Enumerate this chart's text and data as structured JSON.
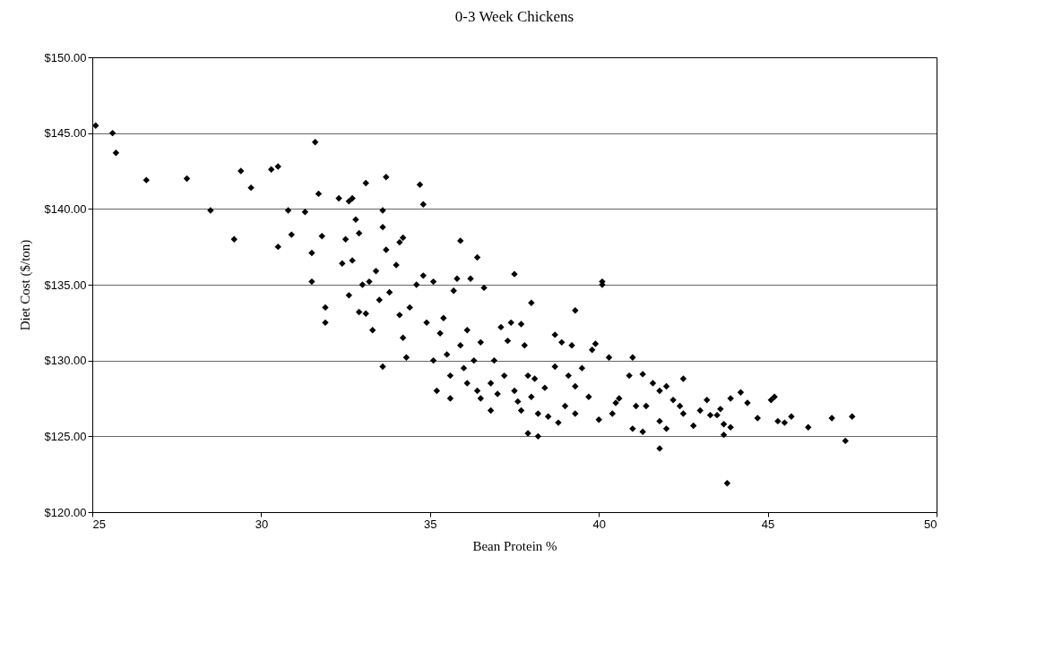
{
  "chart_data": {
    "type": "scatter",
    "title": "0-3 Week  Chickens",
    "xlabel": "Bean Protein %",
    "ylabel": "Diet Cost ($/ton)",
    "x": [
      25.1,
      25.6,
      25.7,
      26.6,
      27.8,
      28.5,
      29.2,
      29.4,
      29.7,
      30.3,
      30.5,
      30.5,
      30.8,
      30.9,
      31.3,
      31.5,
      31.6,
      31.5,
      31.7,
      31.8,
      31.9,
      31.9,
      32.3,
      32.4,
      32.5,
      32.6,
      32.7,
      32.6,
      32.7,
      32.8,
      32.9,
      32.9,
      33.0,
      33.1,
      33.1,
      33.2,
      33.3,
      33.4,
      33.5,
      33.6,
      33.6,
      33.7,
      33.6,
      33.7,
      33.8,
      34.0,
      34.1,
      34.2,
      34.1,
      34.2,
      34.3,
      34.4,
      34.6,
      34.7,
      34.8,
      34.8,
      34.9,
      35.1,
      35.1,
      35.2,
      35.3,
      35.4,
      35.5,
      35.6,
      35.6,
      35.7,
      35.8,
      35.9,
      35.9,
      36.0,
      36.1,
      36.1,
      36.2,
      36.3,
      36.4,
      36.4,
      36.5,
      36.5,
      36.6,
      36.8,
      36.8,
      36.9,
      37.0,
      37.1,
      37.2,
      37.3,
      37.4,
      37.5,
      37.5,
      37.6,
      37.7,
      37.7,
      37.8,
      37.9,
      37.9,
      38.0,
      38.0,
      38.1,
      38.2,
      38.2,
      38.4,
      38.5,
      38.7,
      38.7,
      38.8,
      38.9,
      39.0,
      39.1,
      39.2,
      39.3,
      39.3,
      39.3,
      39.5,
      39.7,
      39.8,
      39.9,
      40.0,
      40.1,
      40.1,
      40.3,
      40.4,
      40.5,
      40.6,
      40.9,
      41.0,
      41.0,
      41.1,
      41.3,
      41.3,
      41.4,
      41.6,
      41.8,
      41.8,
      41.8,
      42.0,
      42.0,
      42.2,
      42.4,
      42.5,
      42.5,
      42.8,
      43.0,
      43.2,
      43.3,
      43.5,
      43.6,
      43.7,
      43.7,
      43.8,
      43.9,
      43.9,
      44.2,
      44.4,
      44.7,
      45.1,
      45.2,
      45.3,
      45.5,
      45.7,
      46.2,
      46.9,
      47.3,
      47.5
    ],
    "series": [
      {
        "color": "#000000",
        "values": [
          145.5,
          145.0,
          143.7,
          141.9,
          142.0,
          139.9,
          138.0,
          142.5,
          141.4,
          142.6,
          142.8,
          137.5,
          139.9,
          138.3,
          139.8,
          135.2,
          144.4,
          137.1,
          141.0,
          138.2,
          133.5,
          132.5,
          140.7,
          136.4,
          138.0,
          140.5,
          140.7,
          134.3,
          136.6,
          139.3,
          138.4,
          133.2,
          135.0,
          141.7,
          133.1,
          135.2,
          132.0,
          135.9,
          134.0,
          139.9,
          138.8,
          142.1,
          129.6,
          137.3,
          134.5,
          136.3,
          137.8,
          138.1,
          133.0,
          131.5,
          130.2,
          133.5,
          135.0,
          141.6,
          140.3,
          135.6,
          132.5,
          135.2,
          130.0,
          128.0,
          131.8,
          132.8,
          130.4,
          127.5,
          129.0,
          134.6,
          135.4,
          137.9,
          131.0,
          129.5,
          132.0,
          128.5,
          135.4,
          130.0,
          136.8,
          128.0,
          127.5,
          131.2,
          134.8,
          128.5,
          126.7,
          130.0,
          127.8,
          132.2,
          129.0,
          131.3,
          132.5,
          128.0,
          135.7,
          127.3,
          132.4,
          126.7,
          131.0,
          129.0,
          125.2,
          133.8,
          127.6,
          128.8,
          126.5,
          125.0,
          128.2,
          126.3,
          131.7,
          129.6,
          125.9,
          131.2,
          127.0,
          129.0,
          131.0,
          128.3,
          133.3,
          126.5,
          129.5,
          127.6,
          130.7,
          131.1,
          126.1,
          135.2,
          135.0,
          130.2,
          126.5,
          127.2,
          127.5,
          129.0,
          125.5,
          130.2,
          127.0,
          125.3,
          129.1,
          127.0,
          128.5,
          128.0,
          126.0,
          124.2,
          125.5,
          128.3,
          127.4,
          127.0,
          128.8,
          126.5,
          125.7,
          126.7,
          127.4,
          126.4,
          126.4,
          126.8,
          125.1,
          125.8,
          121.9,
          127.5,
          125.6,
          127.9,
          127.2,
          126.2,
          127.4,
          127.6,
          126.0,
          125.9,
          126.3,
          125.6,
          126.2,
          124.7,
          126.3
        ]
      }
    ],
    "xlim": [
      25,
      50
    ],
    "xticks": [
      25,
      30,
      35,
      40,
      45,
      50
    ],
    "ylim": [
      120,
      150
    ],
    "yticks": [
      {
        "value": 120,
        "label": "$120.00"
      },
      {
        "value": 125,
        "label": "$125.00"
      },
      {
        "value": 130,
        "label": "$130.00"
      },
      {
        "value": 135,
        "label": "$135.00"
      },
      {
        "value": 140,
        "label": "$140.00"
      },
      {
        "value": 145,
        "label": "$145.00"
      },
      {
        "value": 150,
        "label": "$150.00"
      }
    ],
    "grid": "y",
    "marker": "diamond",
    "legend": false
  }
}
